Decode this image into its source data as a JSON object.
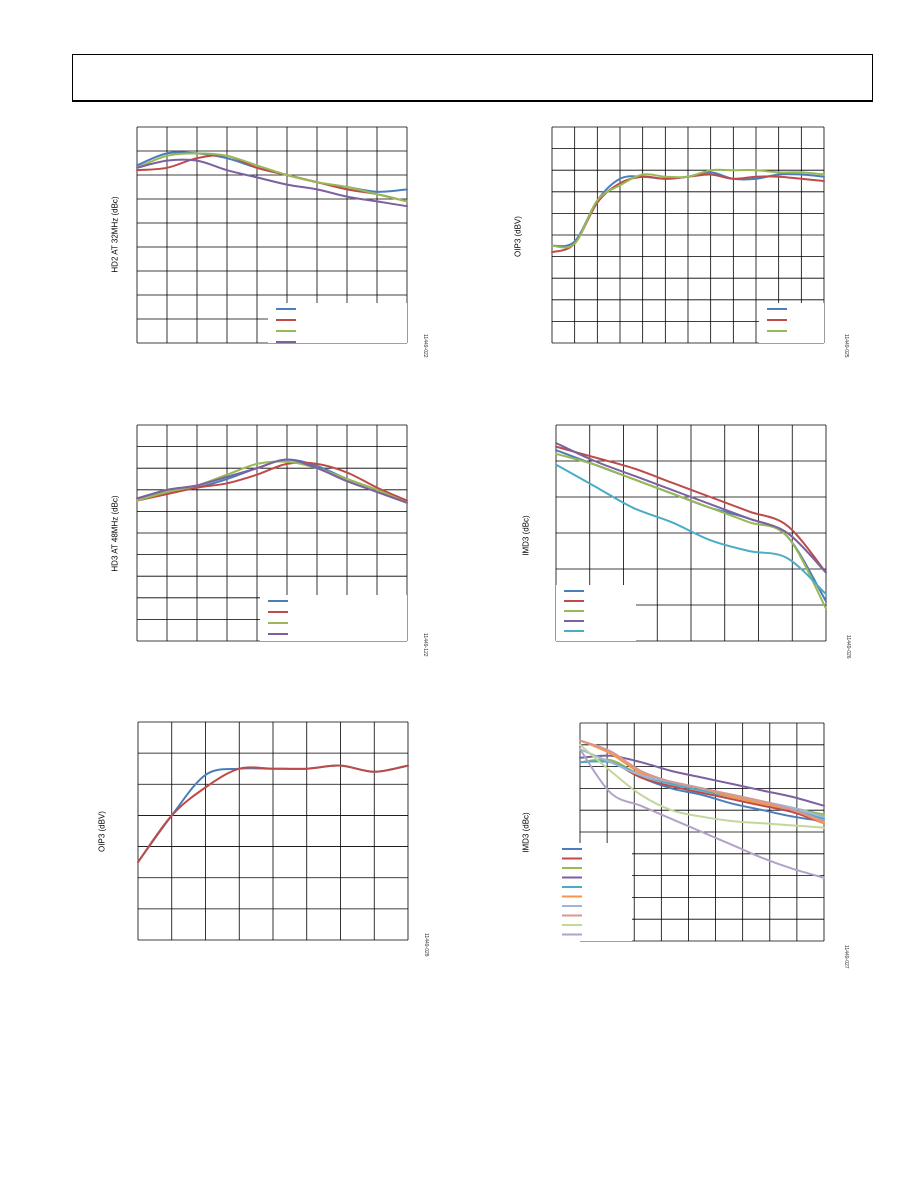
{
  "chart_data": [
    {
      "type": "line",
      "ylabel": "HD2 AT 32MHz (dBc)",
      "figure_id": "11449-022",
      "grid": true,
      "legend": "bottom-right",
      "x": [
        0,
        1,
        2,
        3,
        4,
        5,
        6,
        7,
        8,
        9
      ],
      "series": [
        {
          "color": "#4a7ebb",
          "values": [
            7.4,
            7.9,
            7.9,
            7.7,
            7.3,
            7.0,
            6.7,
            6.5,
            6.3,
            6.4
          ]
        },
        {
          "color": "#be4b48",
          "values": [
            7.2,
            7.3,
            7.7,
            7.8,
            7.3,
            7.0,
            6.7,
            6.4,
            6.2,
            5.9
          ]
        },
        {
          "color": "#98b954",
          "values": [
            7.3,
            7.8,
            7.9,
            7.8,
            7.4,
            7.0,
            6.7,
            6.5,
            6.2,
            5.9
          ]
        },
        {
          "color": "#7d60a0",
          "values": [
            7.3,
            7.6,
            7.6,
            7.2,
            6.9,
            6.6,
            6.4,
            6.1,
            5.9,
            5.7
          ]
        }
      ]
    },
    {
      "type": "line",
      "ylabel": "OIP3 (dBV)",
      "figure_id": "11449-025",
      "grid": true,
      "legend": "bottom-right",
      "x": [
        0,
        1,
        2,
        3,
        4,
        5,
        6,
        7,
        8,
        9,
        10,
        11,
        12
      ],
      "series": [
        {
          "color": "#4a7ebb",
          "values": [
            4.5,
            4.7,
            6.6,
            7.6,
            7.7,
            7.6,
            7.7,
            7.9,
            7.6,
            7.6,
            7.8,
            7.8,
            7.7
          ]
        },
        {
          "color": "#be4b48",
          "values": [
            4.2,
            4.6,
            6.5,
            7.4,
            7.7,
            7.6,
            7.7,
            7.8,
            7.6,
            7.7,
            7.7,
            7.6,
            7.5
          ]
        },
        {
          "color": "#98b954",
          "values": [
            4.5,
            4.6,
            6.6,
            7.3,
            7.8,
            7.7,
            7.7,
            8.0,
            8.0,
            8.0,
            7.9,
            7.9,
            7.8
          ]
        }
      ]
    },
    {
      "type": "line",
      "ylabel": "HD3 AT 48MHz (dBc)",
      "figure_id": "11449-122",
      "grid": true,
      "legend": "bottom-right",
      "x": [
        0,
        1,
        2,
        3,
        4,
        5,
        6,
        7,
        8,
        9
      ],
      "series": [
        {
          "color": "#4a7ebb",
          "values": [
            6.6,
            6.9,
            7.1,
            7.5,
            8.0,
            8.4,
            8.1,
            7.5,
            7.0,
            6.4
          ]
        },
        {
          "color": "#be4b48",
          "values": [
            6.5,
            6.8,
            7.1,
            7.3,
            7.7,
            8.2,
            8.2,
            7.8,
            7.1,
            6.5
          ]
        },
        {
          "color": "#98b954",
          "values": [
            6.5,
            6.9,
            7.2,
            7.7,
            8.2,
            8.3,
            8.0,
            7.5,
            7.0,
            6.4
          ]
        },
        {
          "color": "#7d60a0",
          "values": [
            6.6,
            7.0,
            7.2,
            7.6,
            8.0,
            8.4,
            8.0,
            7.4,
            6.9,
            6.4
          ]
        }
      ]
    },
    {
      "type": "line",
      "ylabel": "IMD3 (dBc)",
      "figure_id": "11449-026",
      "grid": true,
      "legend": "bottom-left",
      "x": [
        0,
        1,
        2,
        3,
        4,
        5,
        6,
        7
      ],
      "series": [
        {
          "color": "#4a7ebb",
          "values": [
            5.3,
            4.9,
            4.5,
            4.1,
            3.7,
            3.4,
            2.9,
            1.1
          ]
        },
        {
          "color": "#be4b48",
          "values": [
            5.4,
            5.1,
            4.8,
            4.4,
            4.0,
            3.6,
            3.2,
            1.9
          ]
        },
        {
          "color": "#98b954",
          "values": [
            5.2,
            4.9,
            4.5,
            4.1,
            3.7,
            3.3,
            2.9,
            0.9
          ]
        },
        {
          "color": "#7d60a0",
          "values": [
            5.5,
            5.0,
            4.6,
            4.2,
            3.8,
            3.4,
            3.0,
            1.9
          ]
        },
        {
          "color": "#4bacc6",
          "values": [
            4.9,
            4.3,
            3.7,
            3.3,
            2.8,
            2.5,
            2.3,
            1.3
          ]
        }
      ]
    },
    {
      "type": "line",
      "ylabel": "OIP3 (dBV)",
      "figure_id": "11449-028",
      "grid": true,
      "x": [
        0,
        1,
        2,
        3,
        4,
        5,
        6,
        7,
        8
      ],
      "series": [
        {
          "color": "#4a7ebb",
          "values": [
            2.5,
            4.0,
            5.3,
            5.5,
            5.5,
            5.5,
            5.6,
            5.4,
            5.6
          ]
        },
        {
          "color": "#be4b48",
          "values": [
            2.5,
            4.0,
            4.9,
            5.5,
            5.5,
            5.5,
            5.6,
            5.4,
            5.6
          ]
        }
      ]
    },
    {
      "type": "line",
      "ylabel": "IMD3 (dBc)",
      "figure_id": "11449-027",
      "grid": true,
      "legend": "bottom-left",
      "x": [
        0,
        1,
        2,
        3,
        4,
        5,
        6,
        7,
        8
      ],
      "series": [
        {
          "color": "#4a7ebb",
          "values": [
            8.2,
            8.2,
            7.5,
            7.0,
            6.7,
            6.3,
            6.0,
            5.7,
            5.5
          ]
        },
        {
          "color": "#be4b48",
          "values": [
            8.2,
            8.2,
            7.5,
            7.1,
            6.8,
            6.5,
            6.2,
            5.9,
            5.4
          ]
        },
        {
          "color": "#98b954",
          "values": [
            8.2,
            8.3,
            7.6,
            7.3,
            7.0,
            6.7,
            6.4,
            6.1,
            5.8
          ]
        },
        {
          "color": "#7d60a0",
          "values": [
            8.4,
            8.5,
            8.2,
            7.8,
            7.5,
            7.2,
            6.9,
            6.6,
            6.2
          ]
        },
        {
          "color": "#4bacc6",
          "values": [
            8.2,
            8.2,
            7.6,
            7.2,
            6.9,
            6.6,
            6.3,
            6.0,
            5.6
          ]
        },
        {
          "color": "#f79646",
          "values": [
            9.2,
            8.6,
            7.7,
            7.3,
            7.0,
            6.6,
            6.3,
            6.0,
            5.4
          ]
        },
        {
          "color": "#9db7d9",
          "values": [
            8.8,
            8.2,
            7.6,
            7.3,
            7.0,
            6.7,
            6.4,
            6.1,
            5.7
          ]
        },
        {
          "color": "#d99694",
          "values": [
            9.2,
            8.7,
            7.8,
            7.3,
            7.0,
            6.7,
            6.4,
            6.0,
            5.5
          ]
        },
        {
          "color": "#c3d69b",
          "values": [
            9.0,
            7.8,
            6.7,
            6.0,
            5.7,
            5.5,
            5.4,
            5.3,
            5.2
          ]
        },
        {
          "color": "#b3a2c7",
          "values": [
            8.8,
            6.8,
            6.2,
            5.6,
            5.0,
            4.4,
            3.8,
            3.3,
            2.9
          ]
        }
      ]
    }
  ]
}
